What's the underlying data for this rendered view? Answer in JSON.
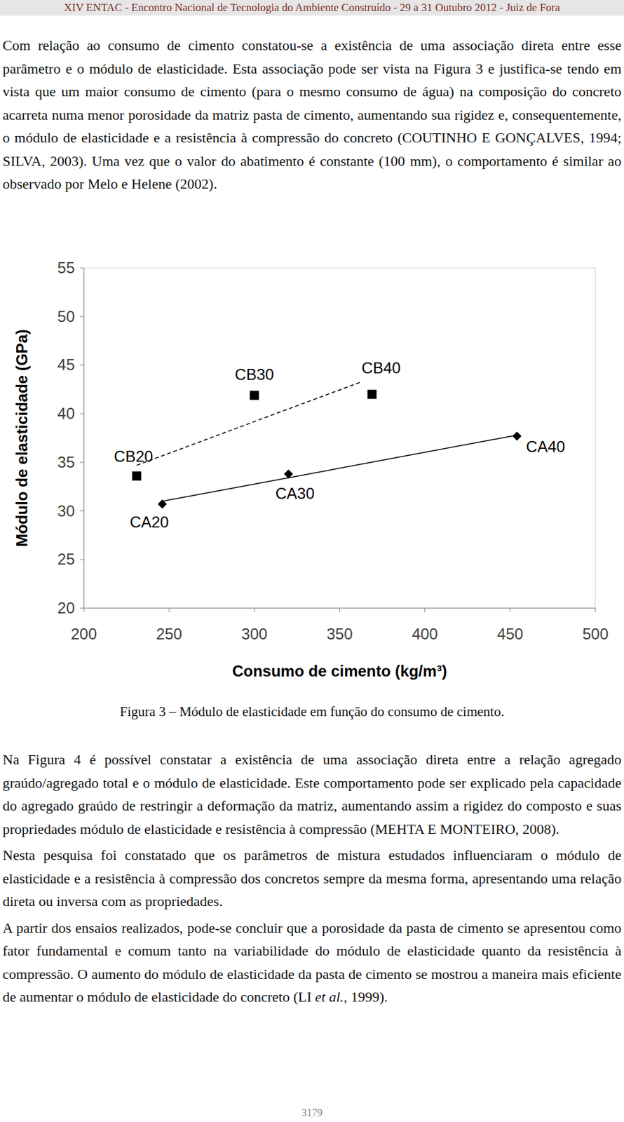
{
  "header": {
    "text": "XIV ENTAC - Encontro Nacional de Tecnologia do Ambiente Construído - 29 a 31 Outubro 2012 - Juiz de Fora"
  },
  "paragraphs_before": [
    {
      "runs": [
        {
          "text": "Com relação ao consumo de cimento constatou-se a existência de uma associação direta entre esse parâmetro e o módulo de elasticidade. Esta associação pode ser vista na Figura 3 e justifica-se tendo em vista que um maior consumo de cimento (para o mesmo consumo de água) na composição do concreto acarreta numa menor porosidade da matriz pasta de cimento, aumentando sua rigidez e, consequentemente, o módulo de elasticidade e a resistência à compressão do concreto (COUTINHO E GONÇALVES, 1994; SILVA, 2003). Uma vez que o valor do abatimento é constante (100 mm), o comportamento é similar ao observado por Melo e Helene (2002)."
        }
      ]
    }
  ],
  "chart_data": {
    "type": "scatter",
    "xlabel": "Consumo de cimento (kg/m³)",
    "ylabel": "Módulo de elasticidade (GPa)",
    "xlim": [
      200,
      500
    ],
    "xticks": [
      200,
      250,
      300,
      350,
      400,
      450,
      500
    ],
    "ylim": [
      20,
      55
    ],
    "yticks": [
      20,
      25,
      30,
      35,
      40,
      45,
      50,
      55
    ],
    "grid": false,
    "series": [
      {
        "type": "scatter",
        "marker": "diamond",
        "color": "#000000",
        "x": [
          246,
          320,
          454
        ],
        "values": [
          30.7,
          33.8,
          37.7
        ],
        "labels": [
          "CA20",
          "CA30",
          "CA40"
        ]
      },
      {
        "type": "scatter",
        "marker": "square",
        "color": "#000000",
        "x": [
          231,
          300,
          369
        ],
        "values": [
          33.6,
          41.9,
          42.0
        ],
        "labels": [
          "CB20",
          "CB30",
          "CB40"
        ]
      },
      {
        "type": "line",
        "line_style": "solid",
        "color": "#000000",
        "x": [
          246,
          454
        ],
        "values": [
          31.0,
          37.8
        ]
      },
      {
        "type": "line",
        "line_style": "dashed",
        "color": "#000000",
        "x": [
          231,
          363
        ],
        "values": [
          34.7,
          43.3
        ]
      }
    ]
  },
  "caption": "Figura 3 – Módulo de elasticidade em função do consumo de cimento.",
  "paragraphs_after": [
    {
      "runs": [
        {
          "text": "Na Figura 4 é possível constatar a existência de uma associação direta entre a relação agregado graúdo/agregado total e o módulo de elasticidade. Este comportamento pode ser explicado pela capacidade do agregado graúdo de restringir a deformação da matriz, aumentando assim a rigidez do composto e suas propriedades módulo de elasticidade e resistência à compressão (MEHTA E MONTEIRO, 2008)."
        }
      ]
    },
    {
      "runs": [
        {
          "text": "Nesta pesquisa foi constatado que os parâmetros de mistura estudados influenciaram o módulo de elasticidade e a resistência à compressão dos concretos sempre da mesma forma, apresentando uma relação direta ou inversa com as propriedades."
        }
      ]
    },
    {
      "runs": [
        {
          "text": "A partir dos ensaios realizados, pode-se concluir que a porosidade da pasta de cimento se apresentou como fator fundamental e comum tanto na variabilidade do módulo de elasticidade quanto da resistência à compressão. O aumento do módulo de elasticidade da pasta de cimento se mostrou a maneira mais eficiente de aumentar o módulo de elasticidade do concreto (LI "
        },
        {
          "text": "et al.",
          "italic": true
        },
        {
          "text": ", 1999)."
        }
      ]
    }
  ],
  "page_number": "3179"
}
